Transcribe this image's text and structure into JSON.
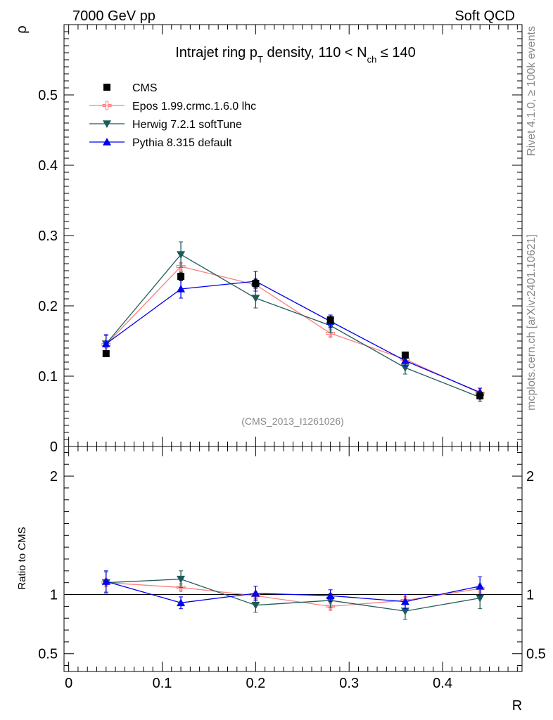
{
  "header": {
    "energy_label": "7000 GeV pp",
    "category_label": "Soft QCD"
  },
  "side_labels": {
    "rivet": "Rivet 4.1.0, ≥ 100k events",
    "mcplots": "mcplots.cern.ch [arXiv:2401.10621]"
  },
  "chart_data": {
    "type": "line",
    "title": {
      "prefix": "Intrajet ring p",
      "sub1": "T",
      "middle": " density, 110 < N",
      "sub2": "ch",
      "suffix": " ≤ 140"
    },
    "analysis_tag": "(CMS_2013_I1261026)",
    "xlabel": "R",
    "ylabel": "ρ",
    "ratio_ylabel": "Ratio to CMS",
    "xlim": [
      -0.005,
      0.485
    ],
    "ylim": [
      0,
      0.6
    ],
    "ratio_ylim": [
      0.35,
      2.25
    ],
    "x_ticks": [
      0,
      0.1,
      0.2,
      0.3,
      0.4
    ],
    "x_tick_labels": [
      "0",
      "0.1",
      "0.2",
      "0.3",
      "0.4"
    ],
    "y_ticks": [
      0,
      0.1,
      0.2,
      0.3,
      0.4,
      0.5
    ],
    "y_tick_labels": [
      "0",
      "0.1",
      "0.2",
      "0.3",
      "0.4",
      "0.5"
    ],
    "ratio_ticks": [
      0.5,
      1,
      2
    ],
    "ratio_tick_labels": [
      "0.5",
      "1",
      "2"
    ],
    "x": [
      0.04,
      0.12,
      0.2,
      0.28,
      0.36,
      0.44
    ],
    "series": [
      {
        "name": "CMS",
        "color": "#000000",
        "marker": "square",
        "line": false,
        "values": [
          0.132,
          0.242,
          0.232,
          0.18,
          0.13,
          0.072
        ],
        "errors": [
          0.004,
          0.006,
          0.006,
          0.005,
          0.004,
          0.003
        ],
        "ratio": [
          1,
          1,
          1,
          1,
          1,
          1
        ],
        "ratio_errors": [
          0,
          0,
          0,
          0,
          0,
          0
        ]
      },
      {
        "name": "Epos 1.99.crmc.1.6.0 lhc",
        "color": "#ff7f7f",
        "marker": "cross",
        "line": true,
        "values": [
          0.145,
          0.256,
          0.23,
          0.161,
          0.124,
          0.076
        ],
        "errors": [
          0.004,
          0.005,
          0.005,
          0.005,
          0.004,
          0.003
        ],
        "ratio": [
          1.1,
          1.06,
          0.99,
          0.9,
          0.95,
          1.05
        ],
        "ratio_errors": [
          0.03,
          0.03,
          0.03,
          0.03,
          0.03,
          0.04
        ]
      },
      {
        "name": "Herwig 7.2.1 softTune",
        "color": "#1f5a5a",
        "marker": "triangle-down",
        "line": true,
        "values": [
          0.146,
          0.273,
          0.211,
          0.172,
          0.112,
          0.07
        ],
        "errors": [
          0.012,
          0.018,
          0.014,
          0.01,
          0.009,
          0.006
        ],
        "ratio": [
          1.1,
          1.13,
          0.91,
          0.95,
          0.86,
          0.97
        ],
        "ratio_errors": [
          0.09,
          0.07,
          0.06,
          0.06,
          0.07,
          0.09
        ]
      },
      {
        "name": "Pythia 8.315 default",
        "color": "#0000ee",
        "marker": "triangle-up",
        "line": true,
        "values": [
          0.146,
          0.224,
          0.235,
          0.178,
          0.122,
          0.077
        ],
        "errors": [
          0.013,
          0.013,
          0.014,
          0.009,
          0.008,
          0.006
        ],
        "ratio": [
          1.11,
          0.93,
          1.01,
          0.99,
          0.94,
          1.07
        ],
        "ratio_errors": [
          0.09,
          0.05,
          0.06,
          0.05,
          0.06,
          0.08
        ]
      }
    ]
  }
}
